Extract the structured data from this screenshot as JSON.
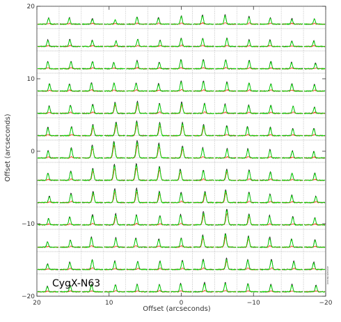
{
  "chart_data": {
    "type": "line",
    "subtype": "spectral-map-grid",
    "source_label": "CygX-N63",
    "xlabel": "Offset (arcseconds)",
    "ylabel": "Offset (arcseconds)",
    "xlim": [
      20,
      -20
    ],
    "ylim": [
      -20,
      20
    ],
    "x_ticks": [
      20,
      10,
      0,
      -10,
      -20
    ],
    "y_ticks": [
      20,
      10,
      0,
      -10,
      -20
    ],
    "x_tick_labels": [
      "20",
      "10",
      "0",
      "−10",
      "−20"
    ],
    "y_tick_labels": [
      "20",
      "10",
      "0",
      "−10",
      "−20"
    ],
    "grid": {
      "columns": 13,
      "rows": 13
    },
    "spacing_arcsec": 3,
    "series": [
      {
        "name": "",
        "color": "#000000"
      },
      {
        "name": "",
        "color": "#ff2a00"
      },
      {
        "name": "",
        "color": "#00dd00"
      }
    ],
    "side_labels": [
      "beam",
      "scale",
      "date"
    ],
    "spectral_strength": [
      [
        0.35,
        0.35,
        0.3,
        0.25,
        0.4,
        0.35,
        0.45,
        0.5,
        0.5,
        0.4,
        0.35,
        0.3,
        0.3
      ],
      [
        0.35,
        0.4,
        0.35,
        0.3,
        0.4,
        0.35,
        0.45,
        0.45,
        0.45,
        0.35,
        0.35,
        0.3,
        0.3
      ],
      [
        0.4,
        0.4,
        0.4,
        0.35,
        0.45,
        0.35,
        0.5,
        0.5,
        0.5,
        0.45,
        0.4,
        0.35,
        0.3
      ],
      [
        0.4,
        0.4,
        0.45,
        0.45,
        0.45,
        0.4,
        0.55,
        0.55,
        0.5,
        0.45,
        0.4,
        0.4,
        0.35
      ],
      [
        0.4,
        0.45,
        0.5,
        0.6,
        0.65,
        0.55,
        0.6,
        0.55,
        0.5,
        0.45,
        0.45,
        0.4,
        0.35
      ],
      [
        0.45,
        0.5,
        0.6,
        0.75,
        0.8,
        0.7,
        0.7,
        0.6,
        0.55,
        0.5,
        0.45,
        0.4,
        0.4
      ],
      [
        0.4,
        0.55,
        0.7,
        0.9,
        0.95,
        0.8,
        0.65,
        0.55,
        0.5,
        0.5,
        0.45,
        0.4,
        0.35
      ],
      [
        0.4,
        0.5,
        0.65,
        0.85,
        0.9,
        0.75,
        0.6,
        0.55,
        0.6,
        0.55,
        0.45,
        0.4,
        0.4
      ],
      [
        0.35,
        0.5,
        0.6,
        0.75,
        0.75,
        0.6,
        0.55,
        0.6,
        0.7,
        0.55,
        0.45,
        0.4,
        0.35
      ],
      [
        0.35,
        0.45,
        0.55,
        0.6,
        0.55,
        0.5,
        0.55,
        0.7,
        0.85,
        0.6,
        0.5,
        0.45,
        0.4
      ],
      [
        0.3,
        0.4,
        0.55,
        0.5,
        0.5,
        0.45,
        0.5,
        0.65,
        0.75,
        0.6,
        0.55,
        0.45,
        0.4
      ],
      [
        0.3,
        0.4,
        0.55,
        0.45,
        0.45,
        0.45,
        0.5,
        0.55,
        0.6,
        0.55,
        0.55,
        0.45,
        0.4
      ],
      [
        0.3,
        0.35,
        0.4,
        0.4,
        0.4,
        0.4,
        0.45,
        0.5,
        0.5,
        0.45,
        0.4,
        0.4,
        0.35
      ]
    ],
    "red_visible_rows": [
      4,
      5,
      6,
      7,
      8,
      9,
      10,
      11,
      12
    ]
  }
}
